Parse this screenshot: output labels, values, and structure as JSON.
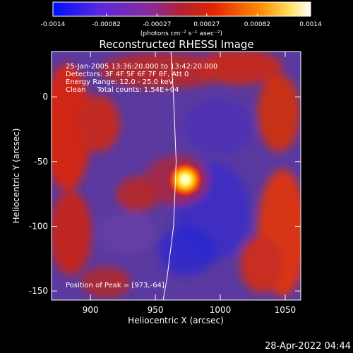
{
  "chart_data": {
    "type": "heatmap",
    "title": "Reconstructed RHESSI Image",
    "xlabel": "Heliocentric X (arcsec)",
    "ylabel": "Heliocentric Y (arcsec)",
    "xlim": [
      870,
      1062
    ],
    "ylim": [
      -157,
      35
    ],
    "xticks": [
      900,
      950,
      1000,
      1050
    ],
    "yticks": [
      0,
      -50,
      -100,
      -150
    ],
    "peak": {
      "x": 973,
      "y": -64
    },
    "limb_curve": [
      {
        "x": 962,
        "y": 35
      },
      {
        "x": 964,
        "y": 0
      },
      {
        "x": 966,
        "y": -50
      },
      {
        "x": 964,
        "y": -100
      },
      {
        "x": 959,
        "y": -140
      },
      {
        "x": 956,
        "y": -157
      }
    ],
    "colorbar": {
      "min": -0.0014,
      "max": 0.0014,
      "tick_values": [
        -0.0014,
        -0.00082,
        -0.00027,
        0.00027,
        0.00082,
        0.0014
      ],
      "tick_labels": [
        "-0.0014",
        "-0.00082",
        "-0.00027",
        "0.00027",
        "0.00082",
        "0.0014"
      ],
      "unit_label": "(photons cm⁻² s⁻¹ asec⁻²)"
    },
    "info_lines": [
      "25-Jan-2005 13:36:20.000 to 13:42:20.000",
      "Detectors: 3F 4F 5F 6F 7F 8F, Att 0",
      "Energy Range: 12.0 - 25.0 keV",
      "Clean     Total counts: 1.54E+04"
    ],
    "peak_label": "Position of Peak = [973,-64]",
    "timestamp": "28-Apr-2022 04:44",
    "colors": {
      "background": "#000000",
      "text": "#ffffff",
      "negative_deep": "#0000ff",
      "mid": "#6a3aa8",
      "positive_peak": "#ffffff"
    }
  }
}
